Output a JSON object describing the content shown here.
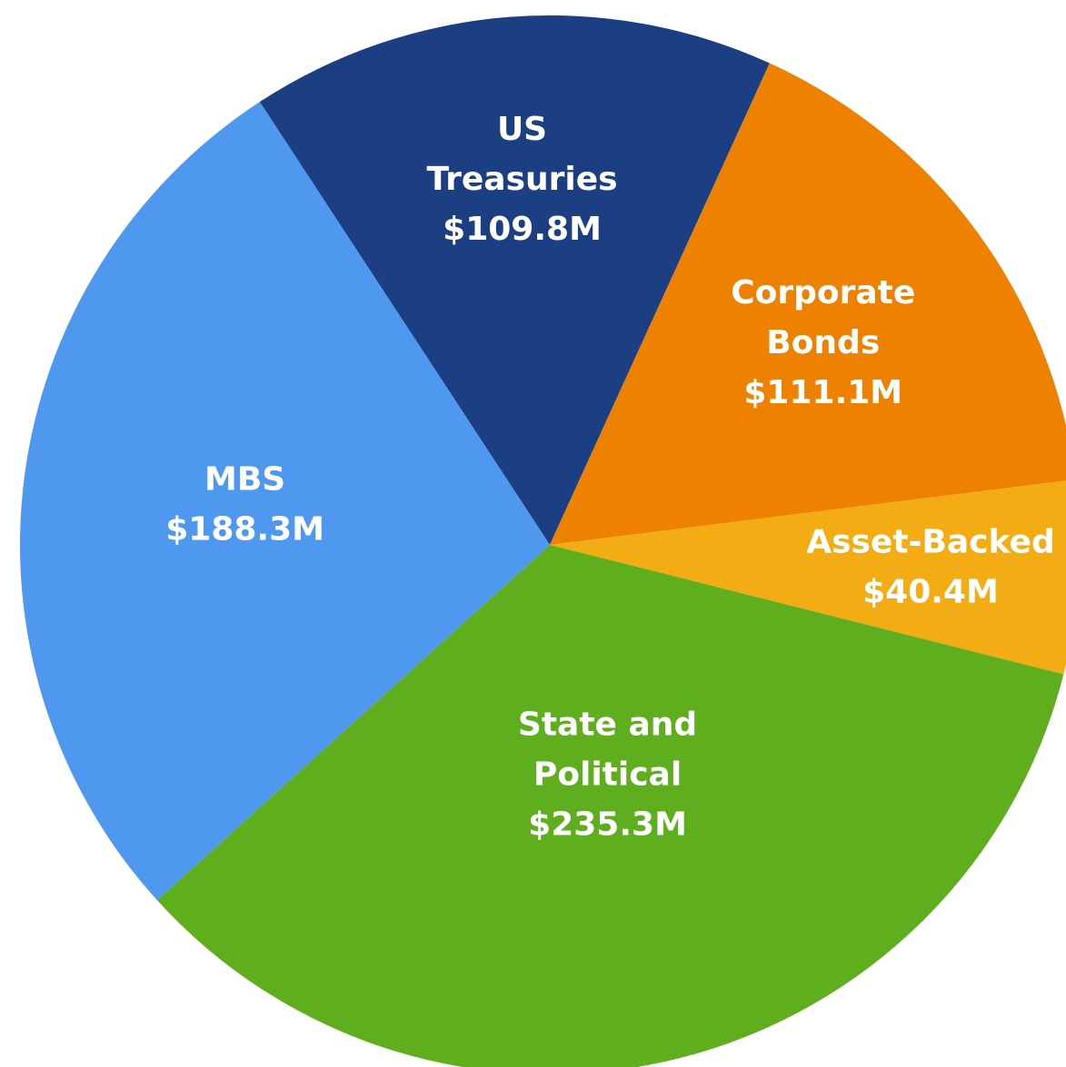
{
  "chart_data": {
    "type": "pie",
    "categories": [
      "US Treasuries",
      "Corporate Bonds",
      "Asset-Backed",
      "State and Political",
      "MBS"
    ],
    "values": [
      109.8,
      111.1,
      40.4,
      235.3,
      188.3
    ],
    "value_labels": [
      "$109.8M",
      "$111.1M",
      "$40.4M",
      "$235.3M",
      "$188.3M"
    ],
    "colors": [
      "#1c3f84",
      "#ee8200",
      "#f4ac14",
      "#5fae1e",
      "#4f98f0"
    ]
  }
}
